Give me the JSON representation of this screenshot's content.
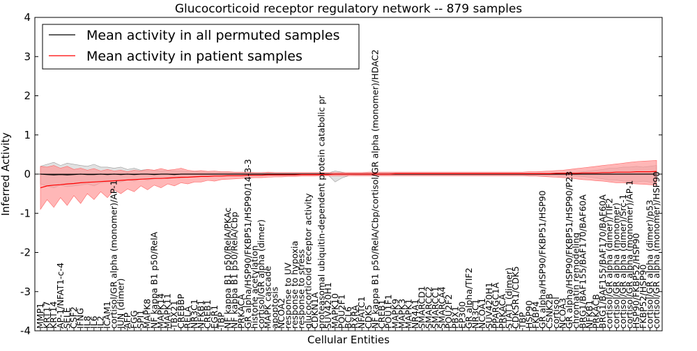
{
  "chart_data": {
    "type": "line",
    "title": "Glucocorticoid receptor regulatory network -- 879 samples",
    "xlabel": "Cellular Entities",
    "ylabel": "Inferred Activity",
    "ylim": [
      -4,
      4
    ],
    "yticks": [
      -4,
      -3,
      -2,
      -1,
      0,
      1,
      2,
      3,
      4
    ],
    "grid": false,
    "legend_position": "top-left",
    "colors": {
      "permuted": "#000000",
      "permuted_band": "#c8c8c8",
      "patient": "#ff0000",
      "patient_band": "#ff9999"
    },
    "x_tick_labels": [
      "MMP1",
      "KRT17",
      "KRT14",
      "AP-1/NFAT1-c-4",
      "SELE",
      "CSF2",
      "IFNG",
      "IL8",
      "IL6",
      "IL2",
      "ICAM1",
      "cortisol/GR alpha (monomer)/AP-1",
      "JUN (dimer)",
      "AFP",
      "FGG",
      "SPI1",
      "MAPK8",
      "NF kappa B1 p50/RelA",
      "MAPK14",
      "MAPK11",
      "TBX21",
      "CREBBP",
      "RELA",
      "NR3C1",
      "NFKB1",
      "CREB1",
      "EGR1",
      "TBP",
      "NF kappa B1 p50/RelA/PKAc",
      "NF kappa B1 p50/RelA/Cbp",
      "PRKACA",
      "GR alpha/HSP90/FKBP51/HSP90/14-3-3",
      "histone acetylation",
      "cortisol/GR alpha (dimer)",
      "MAPK cascade",
      "apoptosis",
      "NCOA2",
      "response to UV",
      "response to hypoxia",
      "response to stress",
      "glucocorticoid receptor activity",
      "CDKN1A",
      "proteasomal ubiquitin-dependent protein catabolic pr",
      "SUV420H1",
      "MAPK10",
      "POU2F1",
      "BCL6",
      "RXRA",
      "NFATC1",
      "CDK5",
      "NF kappa B1 p50/RelA/Cbp/cortisol/GR alpha (monomer)/HDAC2",
      "CREB1",
      "POU1F1",
      "MAPK9",
      "MAPK3",
      "MAPK1",
      "NR4A1",
      "SMARCD1",
      "SMARCC2",
      "SMARCC1",
      "SMARCA4",
      "POU2F2",
      "PBX1",
      "EP300",
      "GR alpha/TIF2",
      "NR3C1",
      "NCOA1",
      "SUV420H1",
      "PPARGC1A",
      "PRKACA",
      "STAT1 (dimer)",
      "CDK5R1/CDK5",
      "TBP",
      "HSP90",
      "FKBP4",
      "GR alpha/HSP90/FKBP51/HSP90",
      "CSNK2B",
      "cortisol",
      "NCOA3",
      "GR alpha/HSP90/FKBP51/HSP90/P23",
      "chromatin remodeling",
      "BRG1/BAF155/BAF170/BAF60A",
      "NFKB1",
      "PRKACB",
      "BRG1/BAF155/BAF170/BAF60A",
      "cortisol/GR alpha (dimer)/TIF2",
      "cortisol/GR alpha (monomer)",
      "cortisol/GR alpha (dimer)/Src-1",
      "cortisol/GR alpha (monomer)/AP-1",
      "HSP90/FKBP52/HSP90",
      "FKBP52/HSP90",
      "cortisol/GR alpha (dimer)/p53",
      "cortisol/GR alpha (monomer)/HSP90"
    ],
    "permuted_mean": [
      0.0,
      -0.01,
      -0.02,
      -0.01,
      -0.02,
      -0.01,
      0.0,
      -0.01,
      -0.01,
      0.0,
      -0.01,
      0.0,
      -0.01,
      0.0,
      -0.01,
      0.0,
      0.0,
      -0.01,
      0.0,
      0.0,
      -0.01,
      0.0,
      0.0,
      0.0,
      0.0,
      0.0,
      0.0,
      0.0,
      0.0,
      0.0,
      0.0,
      0.0,
      0.0,
      0.0,
      0.0,
      0.0,
      0.0,
      0.0,
      0.0,
      0.0,
      0.0,
      0.0,
      0.0,
      0.0,
      0.0,
      0.0,
      0.0,
      0.0,
      0.0,
      0.0,
      0.0,
      0.0,
      0.0,
      0.0,
      0.0,
      0.0,
      0.0,
      0.0,
      0.0,
      0.0,
      0.0,
      0.0,
      0.0,
      0.0,
      0.0,
      0.0,
      0.0,
      0.0,
      0.0,
      0.0,
      0.0,
      0.0,
      0.0,
      0.0,
      0.0,
      0.0,
      0.0,
      0.0,
      0.0,
      0.0,
      0.0,
      0.0,
      0.0,
      0.0,
      0.0,
      0.0,
      0.0,
      0.0,
      0.0,
      0.0,
      0.0,
      0.0,
      0.0,
      0.0,
      0.0
    ],
    "permuted_low": [
      -0.25,
      -0.3,
      -0.35,
      -0.28,
      -0.32,
      -0.3,
      -0.28,
      -0.25,
      -0.3,
      -0.22,
      -0.2,
      -0.18,
      -0.2,
      -0.15,
      -0.18,
      -0.12,
      -0.15,
      -0.12,
      -0.1,
      -0.12,
      -0.1,
      -0.1,
      -0.08,
      -0.08,
      -0.06,
      -0.06,
      -0.05,
      -0.05,
      -0.05,
      -0.04,
      -0.04,
      -0.04,
      -0.03,
      -0.03,
      -0.03,
      -0.03,
      -0.03,
      -0.03,
      -0.03,
      -0.03,
      -0.03,
      -0.03,
      -0.03,
      -0.03,
      -0.2,
      -0.1,
      -0.04,
      -0.03,
      -0.03,
      -0.03,
      -0.03,
      -0.03,
      -0.03,
      -0.03,
      -0.03,
      -0.03,
      -0.03,
      -0.03,
      -0.03,
      -0.03,
      -0.03,
      -0.03,
      -0.03,
      -0.03,
      -0.03,
      -0.03,
      -0.03,
      -0.03,
      -0.03,
      -0.03,
      -0.03,
      -0.03,
      -0.03,
      -0.03,
      -0.03,
      -0.03,
      -0.03,
      -0.03,
      -0.04,
      -0.04,
      -0.05,
      -0.06,
      -0.08,
      -0.1,
      -0.12,
      -0.15,
      -0.15,
      -0.18,
      -0.18,
      -0.2,
      -0.18,
      -0.2,
      -0.22,
      -0.2,
      -0.25
    ],
    "permuted_high": [
      0.2,
      0.25,
      0.3,
      0.22,
      0.28,
      0.25,
      0.22,
      0.2,
      0.25,
      0.18,
      0.18,
      0.15,
      0.18,
      0.12,
      0.15,
      0.1,
      0.12,
      0.1,
      0.08,
      0.1,
      0.08,
      0.08,
      0.06,
      0.06,
      0.05,
      0.05,
      0.04,
      0.04,
      0.04,
      0.03,
      0.03,
      0.03,
      0.03,
      0.03,
      0.03,
      0.03,
      0.03,
      0.03,
      0.03,
      0.03,
      0.03,
      0.03,
      0.03,
      0.03,
      0.08,
      0.05,
      0.03,
      0.03,
      0.03,
      0.03,
      0.03,
      0.03,
      0.03,
      0.03,
      0.03,
      0.03,
      0.03,
      0.03,
      0.03,
      0.03,
      0.03,
      0.03,
      0.03,
      0.03,
      0.03,
      0.03,
      0.03,
      0.03,
      0.03,
      0.03,
      0.03,
      0.03,
      0.03,
      0.03,
      0.03,
      0.03,
      0.03,
      0.03,
      0.04,
      0.04,
      0.05,
      0.06,
      0.08,
      0.1,
      0.12,
      0.15,
      0.15,
      0.18,
      0.18,
      0.2,
      0.18,
      0.2,
      0.22,
      0.2,
      0.25
    ],
    "patient_mean": [
      -0.35,
      -0.3,
      -0.28,
      -0.27,
      -0.25,
      -0.24,
      -0.22,
      -0.21,
      -0.2,
      -0.19,
      -0.18,
      -0.17,
      -0.16,
      -0.15,
      -0.14,
      -0.13,
      -0.12,
      -0.11,
      -0.11,
      -0.1,
      -0.09,
      -0.08,
      -0.08,
      -0.07,
      -0.06,
      -0.06,
      -0.05,
      -0.05,
      -0.04,
      -0.04,
      -0.04,
      -0.03,
      -0.03,
      -0.03,
      -0.02,
      -0.02,
      -0.02,
      -0.02,
      -0.02,
      -0.01,
      -0.01,
      -0.01,
      -0.01,
      -0.01,
      0.0,
      0.0,
      0.0,
      0.0,
      0.0,
      0.0,
      0.0,
      0.0,
      0.0,
      0.01,
      0.01,
      0.01,
      0.01,
      0.01,
      0.01,
      0.01,
      0.01,
      0.01,
      0.01,
      0.01,
      0.01,
      0.01,
      0.01,
      0.01,
      0.01,
      0.01,
      0.01,
      0.01,
      0.01,
      0.01,
      0.01,
      0.01,
      0.01,
      0.02,
      0.02,
      0.02,
      0.02,
      0.03,
      0.03,
      0.03,
      0.04,
      0.04,
      0.05,
      0.05,
      0.05,
      0.06,
      0.06,
      0.06,
      0.07,
      0.07,
      0.05
    ],
    "patient_low": [
      -0.9,
      -0.65,
      -0.85,
      -0.6,
      -0.8,
      -0.55,
      -0.75,
      -0.5,
      -0.65,
      -0.45,
      -0.6,
      -0.4,
      -0.5,
      -0.38,
      -0.45,
      -0.3,
      -0.4,
      -0.28,
      -0.35,
      -0.25,
      -0.3,
      -0.22,
      -0.25,
      -0.2,
      -0.2,
      -0.16,
      -0.18,
      -0.14,
      -0.13,
      -0.12,
      -0.11,
      -0.1,
      -0.09,
      -0.09,
      -0.08,
      -0.07,
      -0.07,
      -0.06,
      -0.06,
      -0.05,
      -0.05,
      -0.05,
      -0.04,
      -0.04,
      -0.04,
      -0.04,
      -0.04,
      -0.04,
      -0.04,
      -0.04,
      -0.04,
      -0.04,
      -0.04,
      -0.04,
      -0.04,
      -0.04,
      -0.04,
      -0.04,
      -0.04,
      -0.04,
      -0.04,
      -0.04,
      -0.04,
      -0.04,
      -0.04,
      -0.04,
      -0.04,
      -0.04,
      -0.04,
      -0.04,
      -0.04,
      -0.04,
      -0.04,
      -0.05,
      -0.05,
      -0.06,
      -0.07,
      -0.08,
      -0.09,
      -0.1,
      -0.12,
      -0.14,
      -0.15,
      -0.17,
      -0.18,
      -0.2,
      -0.22,
      -0.22,
      -0.24,
      -0.25,
      -0.26,
      -0.27,
      -0.28,
      -0.28,
      -0.3
    ],
    "patient_high": [
      0.2,
      0.18,
      0.22,
      0.15,
      0.2,
      0.12,
      0.15,
      0.1,
      0.14,
      0.08,
      0.12,
      0.08,
      0.1,
      0.06,
      0.1,
      0.08,
      0.12,
      0.1,
      0.14,
      0.1,
      0.12,
      0.15,
      0.1,
      0.08,
      0.09,
      0.07,
      0.08,
      0.06,
      0.06,
      0.05,
      0.05,
      0.05,
      0.04,
      0.04,
      0.05,
      0.04,
      0.04,
      0.04,
      0.04,
      0.04,
      0.04,
      0.04,
      0.04,
      0.04,
      0.04,
      0.04,
      0.04,
      0.04,
      0.04,
      0.05,
      0.05,
      0.05,
      0.05,
      0.05,
      0.05,
      0.05,
      0.05,
      0.05,
      0.05,
      0.05,
      0.05,
      0.05,
      0.05,
      0.05,
      0.05,
      0.05,
      0.05,
      0.05,
      0.05,
      0.05,
      0.05,
      0.05,
      0.05,
      0.06,
      0.06,
      0.07,
      0.08,
      0.09,
      0.1,
      0.12,
      0.14,
      0.16,
      0.18,
      0.2,
      0.22,
      0.24,
      0.26,
      0.28,
      0.3,
      0.32,
      0.33,
      0.34,
      0.35,
      0.36,
      0.38
    ]
  },
  "legend": {
    "permuted_label": "Mean activity in all permuted samples",
    "patient_label": "Mean activity in patient samples"
  }
}
